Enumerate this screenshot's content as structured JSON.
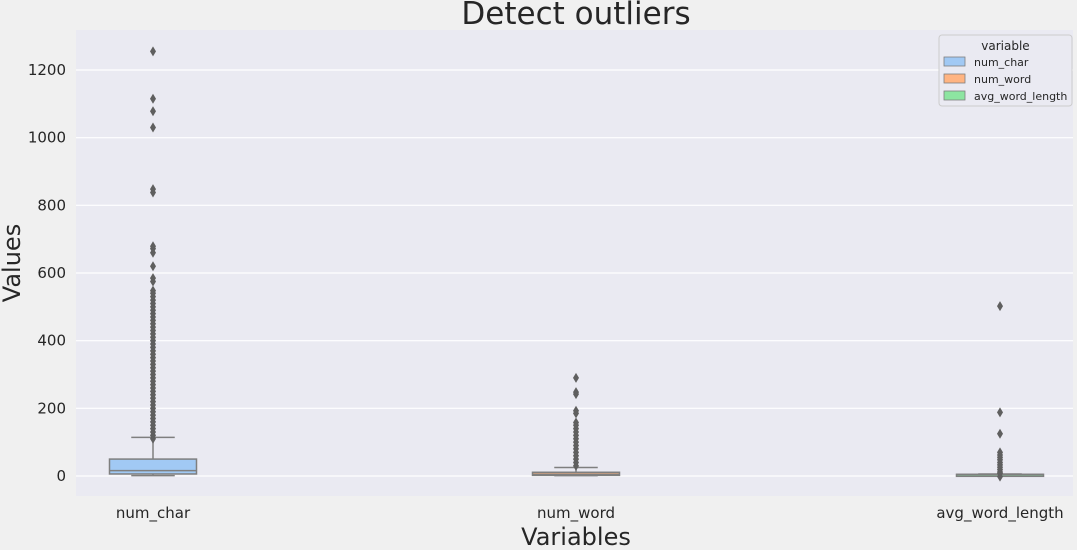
{
  "chart_data": {
    "type": "box",
    "title": "Detect outliers",
    "xlabel": "Variables",
    "ylabel": "Values",
    "ylim": [
      -60,
      1320
    ],
    "yticks": [
      0,
      200,
      400,
      600,
      800,
      1000,
      1200
    ],
    "grid": true,
    "legend": {
      "title": "variable",
      "placement": "top-right",
      "entries": [
        "num_char",
        "num_word",
        "avg_word_length"
      ]
    },
    "colors": {
      "num_char": "#a1c9f4",
      "num_word": "#ffb482",
      "avg_word_length": "#8de5a1",
      "background": "#eaeaf2",
      "figure": "#f0f0f0",
      "lines": "#7f7f7f"
    },
    "categories": [
      "num_char",
      "num_word",
      "avg_word_length"
    ],
    "series": [
      {
        "name": "num_char",
        "category": "num_char",
        "whisker_low": 1,
        "q1": 6,
        "median": 16,
        "q3": 50,
        "whisker_high": 114,
        "outliers": [
          1255,
          1115,
          1078,
          1030,
          848,
          838,
          679,
          672,
          660,
          620,
          585,
          575,
          548,
          540,
          530,
          520,
          510,
          500,
          490,
          480,
          470,
          460,
          450,
          440,
          430,
          420,
          410,
          400,
          390,
          380,
          370,
          360,
          350,
          340,
          330,
          320,
          310,
          300,
          290,
          280,
          270,
          260,
          250,
          240,
          230,
          220,
          210,
          200,
          190,
          180,
          170,
          160,
          150,
          140,
          130,
          120,
          110
        ]
      },
      {
        "name": "num_word",
        "category": "num_word",
        "whisker_low": 1,
        "q1": 2,
        "median": 5,
        "q3": 11,
        "whisker_high": 25,
        "outliers": [
          290,
          248,
          242,
          193,
          185,
          158,
          150,
          140,
          130,
          120,
          110,
          100,
          90,
          80,
          70,
          60,
          50,
          40,
          30
        ]
      },
      {
        "name": "avg_word_length",
        "category": "avg_word_length",
        "whisker_low": 3,
        "q1": 4,
        "median": 4.5,
        "q3": 5,
        "whisker_high": 6,
        "outliers": [
          502,
          188,
          125,
          70,
          62,
          55,
          48,
          40,
          33,
          26,
          19,
          12,
          8,
          -2
        ]
      }
    ]
  }
}
